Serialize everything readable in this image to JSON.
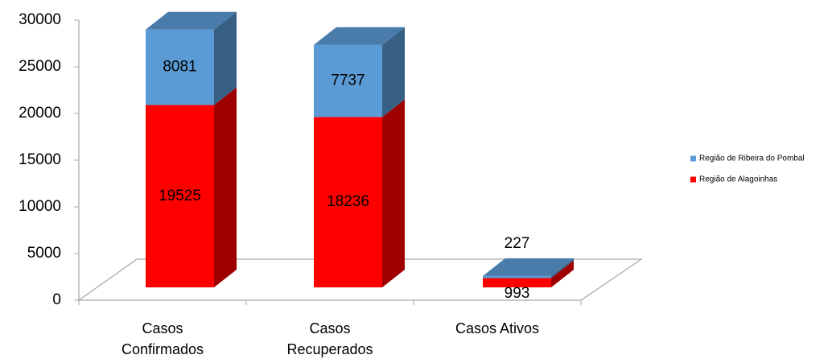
{
  "chart_data": {
    "type": "bar3d_stacked",
    "categories": [
      "Casos Confirmados",
      "Casos Recuperados",
      "Casos Ativos"
    ],
    "series": [
      {
        "name": "Região de Alagoinhas",
        "color": "#ff0000",
        "values": [
          19525,
          18236,
          993
        ]
      },
      {
        "name": "Região de Ribeira do Pombal",
        "color": "#5b9bd5",
        "values": [
          8081,
          7737,
          227
        ]
      }
    ],
    "ylim": [
      0,
      30000
    ],
    "yticks": [
      0,
      5000,
      10000,
      15000,
      20000,
      25000,
      30000
    ],
    "legend": "right"
  }
}
